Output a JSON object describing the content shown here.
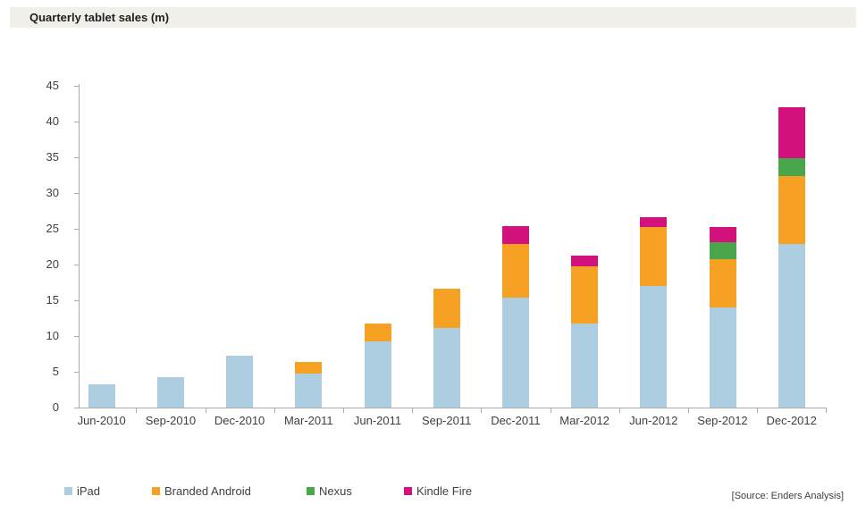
{
  "title": "Quarterly tablet sales (m)",
  "source": "[Source: Enders Analysis]",
  "colors": {
    "ipad": "#adcde0",
    "branded_android": "#f6a123",
    "nexus": "#4aa64a",
    "kindle_fire": "#d2117d",
    "axis": "#ababab",
    "text": "#3f3f3f",
    "title_bg": "#f0efea"
  },
  "chart_data": {
    "type": "bar",
    "stacked": true,
    "title": "Quarterly tablet sales (m)",
    "xlabel": "",
    "ylabel": "",
    "ylim": [
      0,
      45
    ],
    "ytick_step": 5,
    "grid": false,
    "legend_position": "bottom",
    "categories": [
      "Jun-2010",
      "Sep-2010",
      "Dec-2010",
      "Mar-2011",
      "Jun-2011",
      "Sep-2011",
      "Dec-2011",
      "Mar-2012",
      "Jun-2012",
      "Sep-2012",
      "Dec-2012"
    ],
    "series": [
      {
        "name": "iPad",
        "color": "#adcde0",
        "values": [
          3.3,
          4.2,
          7.3,
          4.7,
          9.3,
          11.1,
          15.4,
          11.8,
          17.0,
          14.0,
          22.9
        ]
      },
      {
        "name": "Branded Android",
        "color": "#f6a123",
        "values": [
          0,
          0,
          0,
          1.7,
          2.5,
          5.5,
          7.5,
          8.0,
          8.2,
          6.7,
          9.5
        ]
      },
      {
        "name": "Nexus",
        "color": "#4aa64a",
        "values": [
          0,
          0,
          0,
          0,
          0,
          0,
          0,
          0,
          0,
          2.4,
          2.5
        ]
      },
      {
        "name": "Kindle Fire",
        "color": "#d2117d",
        "values": [
          0,
          0,
          0,
          0,
          0,
          0,
          2.5,
          1.5,
          1.4,
          2.1,
          7.1
        ]
      }
    ]
  }
}
